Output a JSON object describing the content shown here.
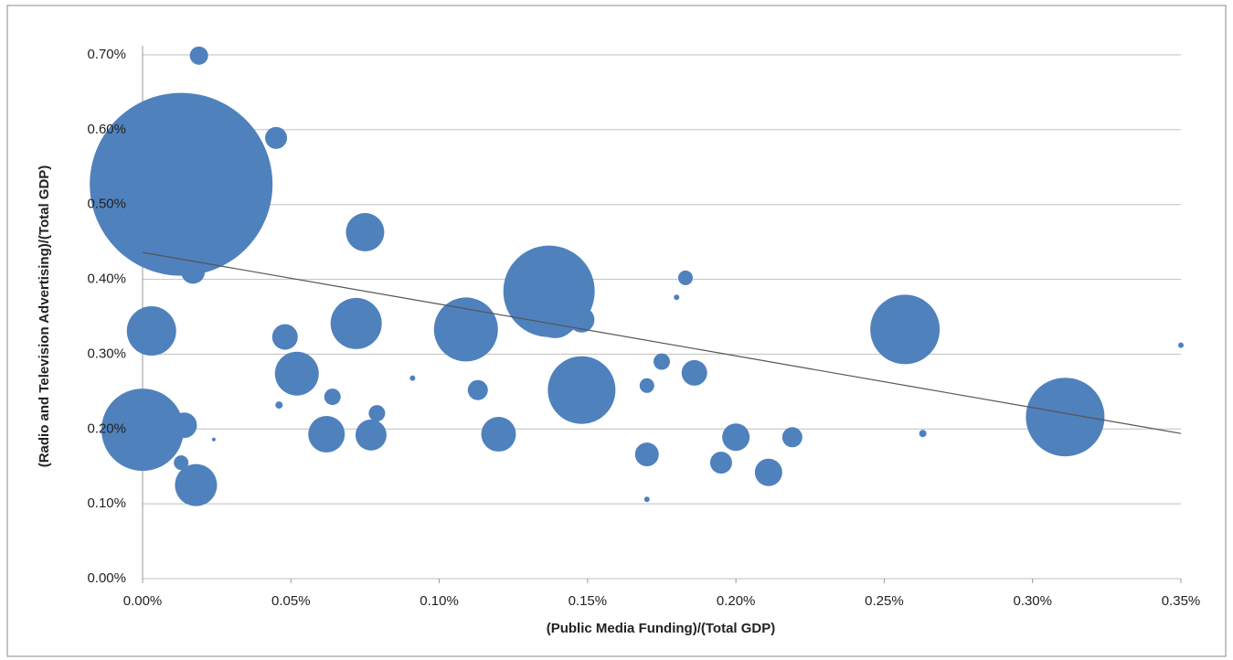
{
  "chart_data": {
    "type": "bubble",
    "x_label": "(Public Media Funding)/(Total GDP)",
    "y_label": "(Radio and Television Advertising)/(Total GDP)",
    "x": [
      0.013,
      0.137,
      0.019,
      0.03,
      0.045,
      0.075,
      0.017,
      0.183,
      0.18,
      0.139,
      0.148,
      0.003,
      0.109,
      0.072,
      0.048,
      0.257,
      0.35,
      0.175,
      0.186,
      0.052,
      0.091,
      0.113,
      0.148,
      0.17,
      0.064,
      0.046,
      0.079,
      0.0,
      0.014,
      0.311,
      0.024,
      0.062,
      0.077,
      0.12,
      0.263,
      0.2,
      0.219,
      0.17,
      0.013,
      0.195,
      0.211,
      0.018,
      0.17
    ],
    "series": [
      {
        "color": "#4f81bd",
        "values": [
          0.527,
          0.384,
          0.699,
          0.6,
          0.589,
          0.463,
          0.41,
          0.402,
          0.376,
          0.352,
          0.346,
          0.331,
          0.333,
          0.341,
          0.323,
          0.333,
          0.312,
          0.29,
          0.275,
          0.274,
          0.268,
          0.252,
          0.252,
          0.258,
          0.243,
          0.232,
          0.221,
          0.199,
          0.205,
          0.216,
          0.186,
          0.193,
          0.192,
          0.193,
          0.194,
          0.189,
          0.189,
          0.166,
          0.155,
          0.155,
          0.142,
          0.125,
          0.106
        ],
        "sizes": [
          10000,
          2500,
          100,
          81,
          144,
          441,
          169,
          64,
          9,
          625,
          196,
          729,
          1225,
          784,
          196,
          1444,
          9,
          81,
          196,
          576,
          9,
          121,
          1369,
          64,
          81,
          16,
          81,
          2025,
          196,
          1849,
          4,
          400,
          289,
          361,
          16,
          225,
          121,
          169,
          64,
          144,
          225,
          529,
          9
        ]
      }
    ],
    "trendline": {
      "color": "#555555",
      "x": [
        0,
        0.35
      ],
      "y": [
        0.436,
        0.194
      ]
    },
    "xlim": [
      0,
      0.35
    ],
    "xticks": [
      {
        "value": 0,
        "label": "0.00%"
      },
      {
        "value": 0.05,
        "label": "0.05%"
      },
      {
        "value": 0.1,
        "label": "0.10%"
      },
      {
        "value": 0.15,
        "label": "0.15%"
      },
      {
        "value": 0.2,
        "label": "0.20%"
      },
      {
        "value": 0.25,
        "label": "0.25%"
      },
      {
        "value": 0.3,
        "label": "0.30%"
      },
      {
        "value": 0.35,
        "label": "0.35%"
      }
    ],
    "ylim": [
      0,
      0.7
    ],
    "yticks": [
      {
        "value": 0,
        "label": "0.00%"
      },
      {
        "value": 0.1,
        "label": "0.10%"
      },
      {
        "value": 0.2,
        "label": "0.20%"
      },
      {
        "value": 0.3,
        "label": "0.30%"
      },
      {
        "value": 0.4,
        "label": "0.40%"
      },
      {
        "value": 0.5,
        "label": "0.50%"
      },
      {
        "value": 0.6,
        "label": "0.60%"
      },
      {
        "value": 0.7,
        "label": "0.70%"
      }
    ],
    "grid": true
  }
}
